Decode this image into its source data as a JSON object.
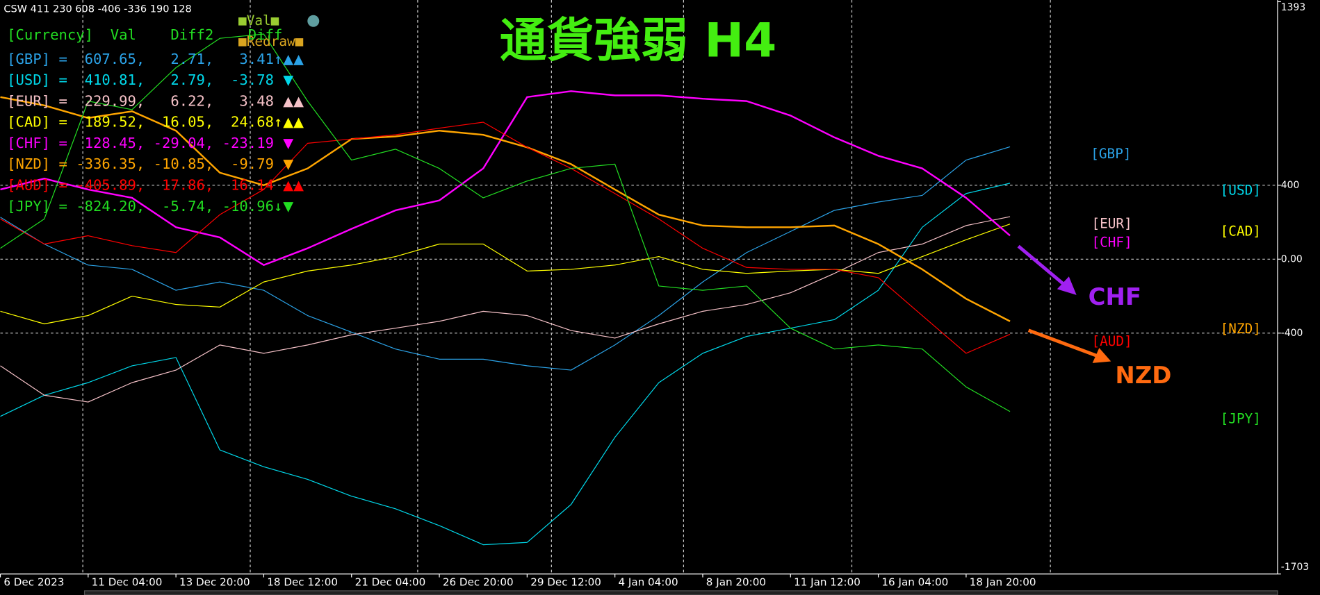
{
  "chart_data": {
    "type": "line",
    "title": "通貨強弱 H4",
    "header_text": "CSW 411 230 608 -406 -336 190 128",
    "val_button": "■Val■",
    "redraw_button": "■Redraw■",
    "table": {
      "header": "[Currency]  Val    Diff2    Diff",
      "header_color": "#22dd22",
      "rows": [
        {
          "text": "[GBP] =  607.65,   2.71,   3.41↑",
          "signals": "▲▲",
          "color": "#2ba3e8"
        },
        {
          "text": "[USD] =  410.81,   2.79,  -3.78",
          "signals": "▼",
          "color": "#00d8ea"
        },
        {
          "text": "[EUR] =  229.99,   6.22,   3.48",
          "signals": "▲▲",
          "color": "#f6c2c8"
        },
        {
          "text": "[CAD] =  189.52,  16.05,  24.68↑",
          "signals": "▲▲",
          "color": "#ffff00"
        },
        {
          "text": "[CHF] =  128.45, -29.04, -23.19",
          "signals": "▼",
          "color": "#ff00ff"
        },
        {
          "text": "[NZD] = -336.35, -10.85,  -9.79",
          "signals": "▼",
          "color": "#ffa500"
        },
        {
          "text": "[AUD] = -405.89,  17.86,  16.14",
          "signals": "▲▲",
          "color": "#ff0000"
        },
        {
          "text": "[JPY] = -824.20,  -5.74, -10.96↓",
          "signals": "▼",
          "color": "#22dd22"
        }
      ]
    },
    "annotations": [
      {
        "text": "CHF",
        "color": "#a020f0"
      },
      {
        "text": "NZD",
        "color": "#ff6a10"
      }
    ],
    "categories": [
      "6 Dec 2023",
      null,
      "11 Dec 04:00",
      null,
      "13 Dec 20:00",
      null,
      "18 Dec 12:00",
      null,
      "21 Dec 04:00",
      null,
      "26 Dec 20:00",
      null,
      "29 Dec 12:00",
      null,
      "4 Jan 04:00",
      null,
      "8 Jan 20:00",
      null,
      "11 Jan 12:00",
      null,
      "16 Jan 04:00",
      null,
      "18 Jan 20:00",
      null
    ],
    "ylim": [
      -1703,
      1393
    ],
    "yticks": [
      -1703,
      -400,
      {
        "value": 0,
        "label": "0.00"
      },
      400,
      1393
    ],
    "grid": true,
    "series": [
      {
        "name": "[GBP]",
        "color": "#2ba3e8",
        "line_width": 1,
        "values": [
          227,
          82,
          -32,
          -55,
          -168,
          -123,
          -168,
          -305,
          -395,
          -486,
          -541,
          -541,
          -577,
          -600,
          -464,
          -305,
          -123,
          36,
          150,
          264,
          309,
          345,
          536,
          608
        ]
      },
      {
        "name": "[USD]",
        "color": "#00d8ea",
        "line_width": 1,
        "values": [
          -850,
          -736,
          -668,
          -577,
          -532,
          -1032,
          -1123,
          -1191,
          -1282,
          -1350,
          -1441,
          -1545,
          -1532,
          -1327,
          -964,
          -668,
          -509,
          -418,
          -373,
          -327,
          -168,
          173,
          355,
          411
        ]
      },
      {
        "name": "[EUR]",
        "color": "#f6c2c8",
        "line_width": 1,
        "values": [
          -577,
          -736,
          -773,
          -668,
          -600,
          -464,
          -509,
          -464,
          -409,
          -373,
          -336,
          -282,
          -305,
          -386,
          -427,
          -350,
          -282,
          -245,
          -182,
          -77,
          36,
          82,
          182,
          230
        ]
      },
      {
        "name": "[CAD]",
        "color": "#ffff00",
        "line_width": 1,
        "values": [
          -282,
          -350,
          -305,
          -200,
          -245,
          -259,
          -123,
          -64,
          -32,
          14,
          82,
          82,
          -64,
          -55,
          -32,
          14,
          -55,
          -77,
          -64,
          -55,
          -77,
          14,
          105,
          190
        ]
      },
      {
        "name": "[CHF]",
        "color": "#ff00ff",
        "line_width": 2,
        "values": [
          377,
          436,
          377,
          332,
          173,
          118,
          -32,
          59,
          164,
          264,
          318,
          491,
          877,
          909,
          886,
          886,
          868,
          855,
          777,
          659,
          559,
          491,
          332,
          128
        ]
      },
      {
        "name": "[NZD]",
        "color": "#ffa500",
        "line_width": 2,
        "values": [
          877,
          832,
          764,
          800,
          695,
          468,
          400,
          491,
          650,
          664,
          695,
          673,
          605,
          514,
          377,
          241,
          182,
          173,
          173,
          182,
          82,
          -55,
          -214,
          -336
        ]
      },
      {
        "name": "[AUD]",
        "color": "#ff0000",
        "line_width": 1,
        "values": [
          218,
          82,
          127,
          73,
          36,
          241,
          377,
          627,
          650,
          673,
          709,
          741,
          605,
          491,
          355,
          218,
          59,
          -45,
          -55,
          -55,
          -100,
          -305,
          -509,
          -406
        ]
      },
      {
        "name": "[JPY]",
        "color": "#22dd22",
        "line_width": 1,
        "values": [
          59,
          218,
          855,
          809,
          1036,
          1195,
          1218,
          855,
          536,
          595,
          491,
          332,
          423,
          491,
          514,
          -145,
          -168,
          -145,
          -373,
          -486,
          -464,
          -486,
          -691,
          -824
        ]
      }
    ]
  }
}
